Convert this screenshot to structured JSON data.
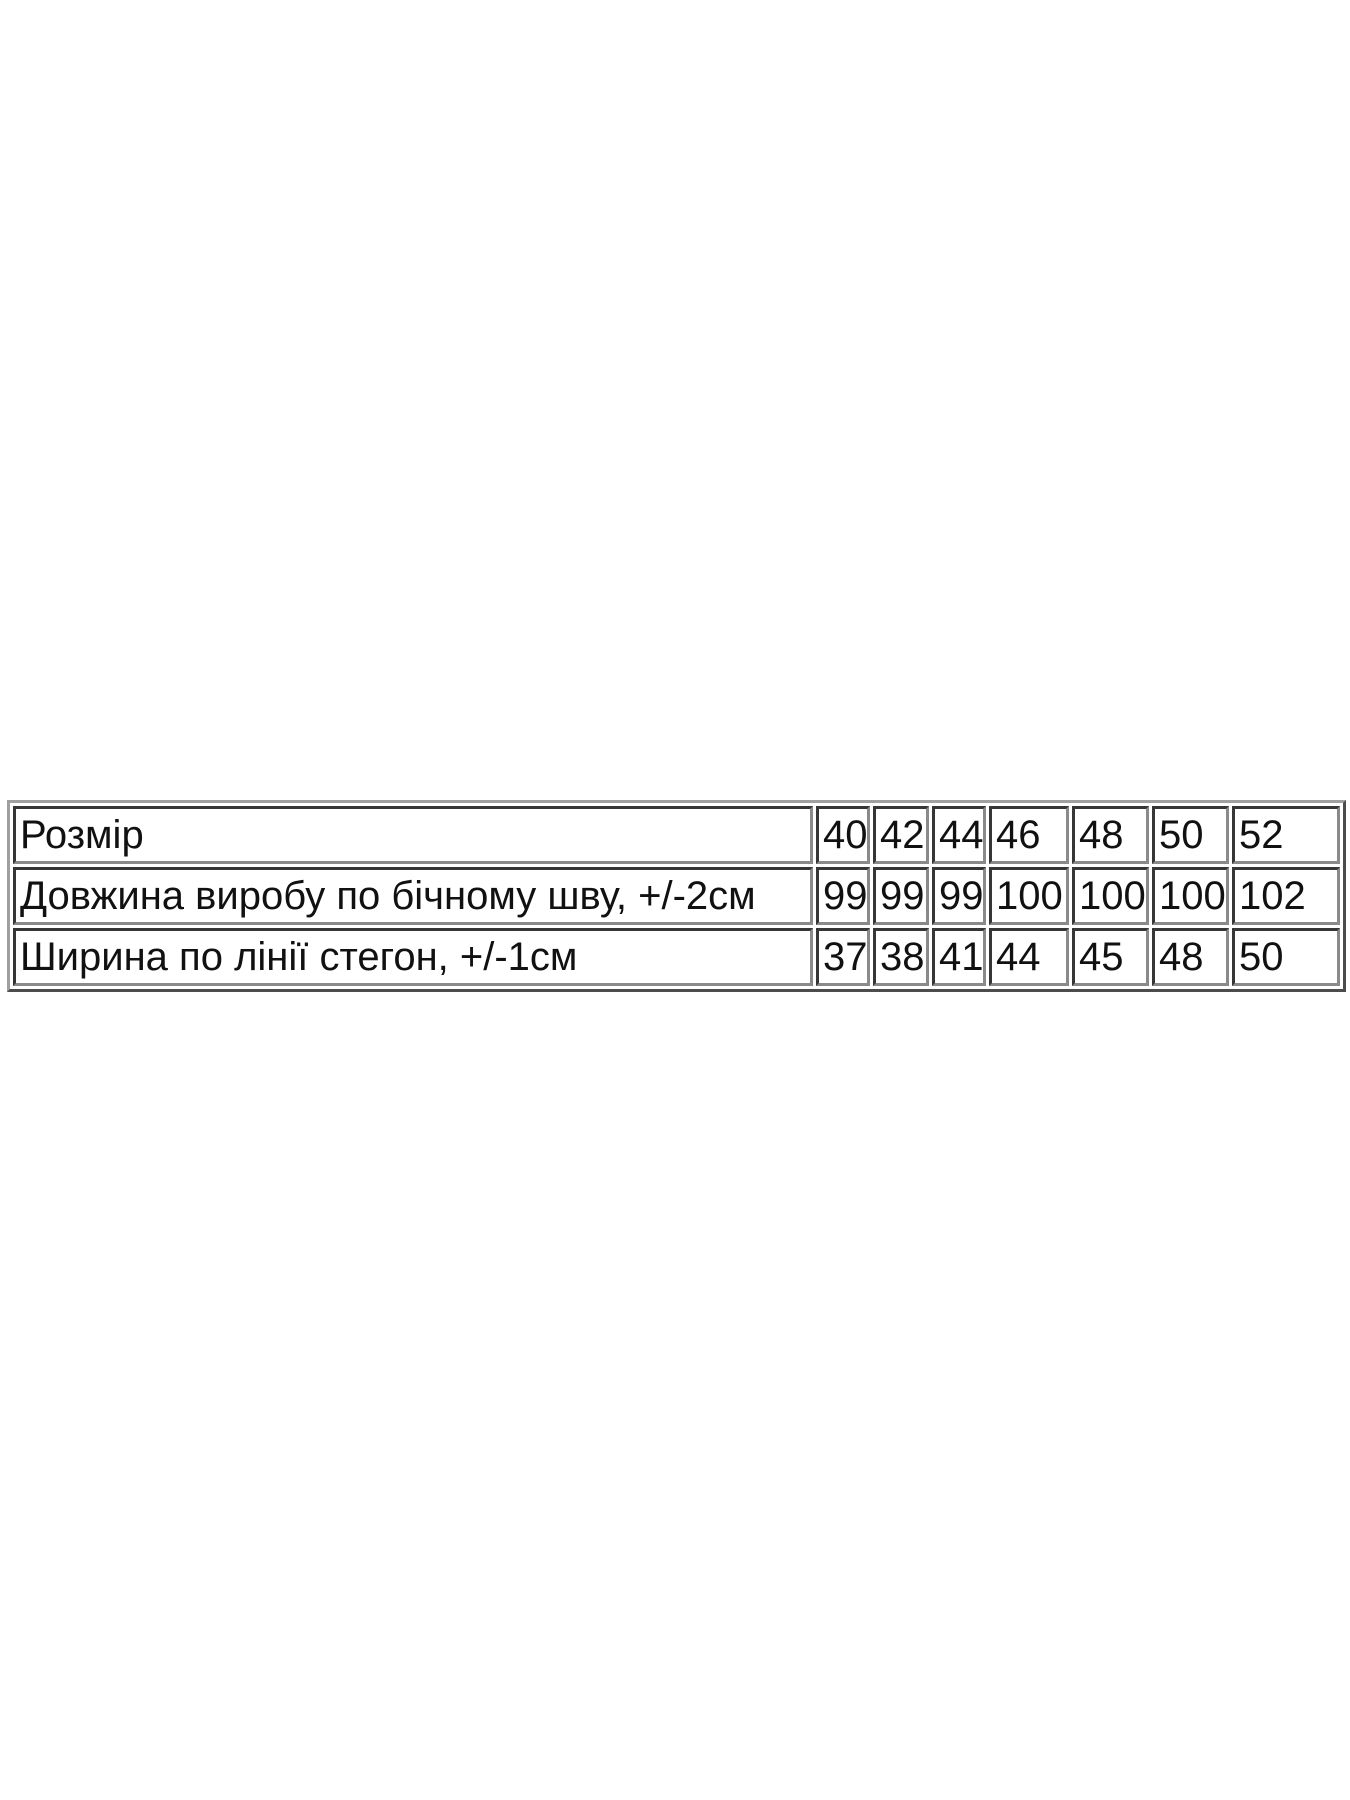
{
  "size_table": {
    "rows": [
      {
        "label": "Розмір",
        "values": [
          "40",
          "42",
          "44",
          "46",
          "48",
          "50",
          "52"
        ]
      },
      {
        "label": "Довжина виробу по бічному шву, +/-2см",
        "values": [
          "99",
          "99",
          "99",
          "100",
          "100",
          "100",
          "102"
        ]
      },
      {
        "label": "Ширина по лінії стегон, +/-1см",
        "values": [
          "37",
          "38",
          "41",
          "44",
          "45",
          "48",
          "50"
        ]
      }
    ]
  }
}
